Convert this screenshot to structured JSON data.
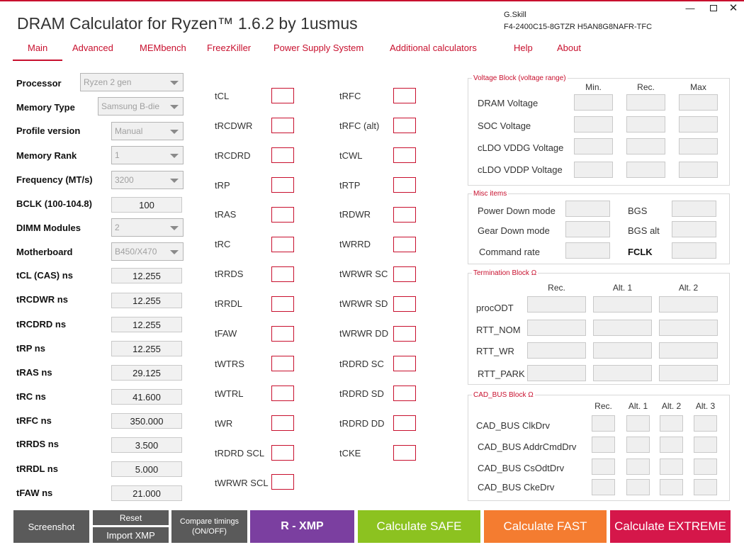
{
  "app": {
    "title": "DRAM Calculator for Ryzen™ 1.6.2 by 1usmus",
    "kit_vendor": "G.Skill",
    "kit_model": "F4-2400C15-8GTZR  H5AN8G8NAFR-TFC",
    "window_controls": [
      "minimize-icon",
      "maximize-icon",
      "close-icon"
    ]
  },
  "tabs": [
    "Main",
    "Advanced",
    "MEMbench",
    "FreezKiller",
    "Power Supply System",
    "Additional calculators",
    "Help",
    "About"
  ],
  "active_tab": "Main",
  "settings": {
    "processor": {
      "label": "Processor",
      "value": "Ryzen 2 gen"
    },
    "memory_type": {
      "label": "Memory Type",
      "value": "Samsung B-die"
    },
    "profile_version": {
      "label": "Profile version",
      "value": "Manual"
    },
    "memory_rank": {
      "label": "Memory Rank",
      "value": "1"
    },
    "frequency": {
      "label": "Frequency (MT/s)",
      "value": "3200"
    },
    "bclk": {
      "label": "BCLK (100-104.8)",
      "value": "100"
    },
    "dimm_modules": {
      "label": "DIMM Modules",
      "value": "2"
    },
    "motherboard": {
      "label": "Motherboard",
      "value": "B450/X470"
    }
  },
  "ns_timings": [
    {
      "label": "tCL (CAS) ns",
      "value": "12.255"
    },
    {
      "label": "tRCDWR ns",
      "value": "12.255"
    },
    {
      "label": "tRCDRD ns",
      "value": "12.255"
    },
    {
      "label": "tRP ns",
      "value": "12.255"
    },
    {
      "label": "tRAS ns",
      "value": "29.125"
    },
    {
      "label": "tRC ns",
      "value": "41.600"
    },
    {
      "label": "tRFC ns",
      "value": "350.000"
    },
    {
      "label": "tRRDS ns",
      "value": "3.500"
    },
    {
      "label": "tRRDL ns",
      "value": "5.000"
    },
    {
      "label": "tFAW ns",
      "value": "21.000"
    }
  ],
  "timings_col1": [
    "tCL",
    "tRCDWR",
    "tRCDRD",
    "tRP",
    "tRAS",
    "tRC",
    "tRRDS",
    "tRRDL",
    "tFAW",
    "tWTRS",
    "tWTRL",
    "tWR",
    "tRDRD SCL",
    "tWRWR SCL"
  ],
  "timings_col2": [
    "tRFC",
    "tRFC (alt)",
    "tCWL",
    "tRTP",
    "tRDWR",
    "tWRRD",
    "tWRWR SC",
    "tWRWR SD",
    "tWRWR DD",
    "tRDRD SC",
    "tRDRD SD",
    "tRDRD DD",
    "tCKE"
  ],
  "voltage_block": {
    "title": "Voltage Block (voltage range)",
    "headers": [
      "Min.",
      "Rec.",
      "Max"
    ],
    "rows": [
      "DRAM Voltage",
      "SOC Voltage",
      "cLDO VDDG Voltage",
      "cLDO VDDP Voltage"
    ]
  },
  "misc_items": {
    "title": "Misc items",
    "left": [
      "Power Down mode",
      "Gear Down mode",
      "Command rate"
    ],
    "right": [
      "BGS",
      "BGS alt",
      "FCLK"
    ]
  },
  "termination_block": {
    "title": "Termination Block Ω",
    "headers": [
      "Rec.",
      "Alt. 1",
      "Alt. 2"
    ],
    "rows": [
      "procODT",
      "RTT_NOM",
      "RTT_WR",
      "RTT_PARK"
    ]
  },
  "cad_bus_block": {
    "title": "CAD_BUS Block Ω",
    "headers": [
      "Rec.",
      "Alt. 1",
      "Alt. 2",
      "Alt. 3"
    ],
    "rows": [
      "CAD_BUS ClkDrv",
      "CAD_BUS AddrCmdDrv",
      "CAD_BUS CsOdtDrv",
      "CAD_BUS CkeDrv"
    ]
  },
  "buttons": {
    "screenshot": "Screenshot",
    "reset": "Reset",
    "import_xmp": "Import XMP",
    "compare_line1": "Compare timings",
    "compare_line2": "(ON/OFF)",
    "r_xmp": "R - XMP",
    "calc_safe": "Calculate SAFE",
    "calc_fast": "Calculate FAST",
    "calc_extreme": "Calculate EXTREME"
  },
  "colors": {
    "accent": "#c8102e",
    "dark_button": "#5a5a5a",
    "r_xmp": "#7b3fa0",
    "safe": "#8cc220",
    "fast": "#f47c30",
    "extreme": "#d5174a"
  }
}
